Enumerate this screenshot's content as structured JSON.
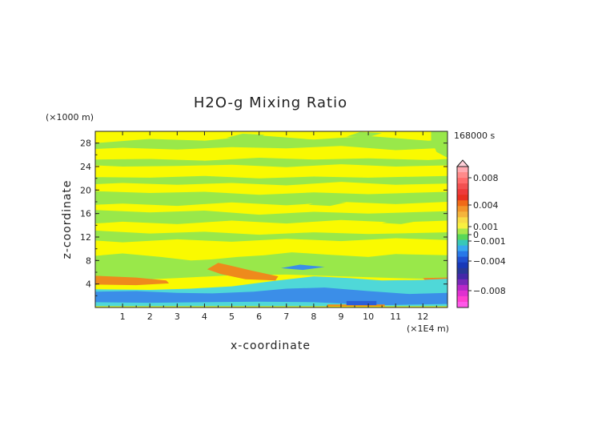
{
  "chart_data": {
    "type": "heatmap",
    "title": "H2O-g Mixing Ratio",
    "xlabel": "x-coordinate",
    "ylabel": "z-coordinate",
    "x_unit": "(×1E4 m)",
    "y_unit": "(×1000 m)",
    "time_label": "168000 s",
    "xlim": [
      0,
      12.9
    ],
    "ylim": [
      0,
      30
    ],
    "x_ticks": [
      "1",
      "2",
      "3",
      "4",
      "5",
      "6",
      "7",
      "8",
      "9",
      "10",
      "11",
      "12"
    ],
    "y_ticks": [
      "4",
      "8",
      "12",
      "16",
      "20",
      "24",
      "28"
    ],
    "background_level": "yellow (≈0 to 0.0005)",
    "regions": [
      {
        "name": "upper-band-28",
        "color": "#99e84a",
        "points": [
          [
            0,
            28
          ],
          [
            2,
            28.7
          ],
          [
            4,
            28.4
          ],
          [
            6,
            29.3
          ],
          [
            8,
            28.6
          ],
          [
            10,
            29.2
          ],
          [
            12.2,
            28.4
          ],
          [
            12.9,
            28.6
          ],
          [
            12.9,
            27.2
          ],
          [
            11,
            26.8
          ],
          [
            9,
            27.5
          ],
          [
            7,
            27.1
          ],
          [
            5,
            27.3
          ],
          [
            3,
            26.9
          ],
          [
            1,
            27.2
          ],
          [
            0,
            27
          ]
        ]
      },
      {
        "name": "upper-band-24",
        "color": "#99e84a",
        "points": [
          [
            0,
            25.2
          ],
          [
            2,
            25.3
          ],
          [
            4,
            25
          ],
          [
            6,
            25.5
          ],
          [
            8,
            25.2
          ],
          [
            10,
            25.4
          ],
          [
            12.2,
            25.1
          ],
          [
            12.9,
            25.3
          ],
          [
            12.9,
            24.2
          ],
          [
            11,
            24
          ],
          [
            9,
            24.4
          ],
          [
            7,
            23.9
          ],
          [
            5,
            24.3
          ],
          [
            3,
            24.1
          ],
          [
            1,
            24
          ],
          [
            0,
            24.2
          ]
        ]
      },
      {
        "name": "upper-band-21",
        "color": "#99e84a",
        "points": [
          [
            0,
            22.2
          ],
          [
            2,
            22.1
          ],
          [
            4,
            22.4
          ],
          [
            6,
            22
          ],
          [
            8,
            22.3
          ],
          [
            10,
            22.1
          ],
          [
            12.9,
            22.4
          ],
          [
            12.9,
            21.1
          ],
          [
            11,
            20.9
          ],
          [
            9,
            21.4
          ],
          [
            7,
            20.8
          ],
          [
            5,
            21.2
          ],
          [
            3,
            20.9
          ],
          [
            1,
            21.2
          ],
          [
            0,
            21
          ]
        ]
      },
      {
        "name": "mid-band-18",
        "color": "#99e84a",
        "points": [
          [
            0,
            19.8
          ],
          [
            2,
            19.5
          ],
          [
            4,
            19.7
          ],
          [
            6,
            19.2
          ],
          [
            8,
            19.6
          ],
          [
            10,
            19.3
          ],
          [
            12.9,
            19.7
          ],
          [
            12.9,
            18
          ],
          [
            11,
            17.6
          ],
          [
            9,
            18
          ],
          [
            7,
            17.4
          ],
          [
            5,
            17.9
          ],
          [
            3,
            17.3
          ],
          [
            1,
            17.7
          ],
          [
            0,
            17.5
          ]
        ]
      },
      {
        "name": "mid-band-16",
        "color": "#99e84a",
        "points": [
          [
            0,
            16.6
          ],
          [
            2,
            16.2
          ],
          [
            4,
            16.5
          ],
          [
            6,
            15.8
          ],
          [
            8,
            16.3
          ],
          [
            10,
            16
          ],
          [
            12.9,
            16.4
          ],
          [
            12.9,
            14.8
          ],
          [
            11,
            14.5
          ],
          [
            9,
            14.9
          ],
          [
            7,
            14.3
          ],
          [
            5,
            14.8
          ],
          [
            3,
            14.2
          ],
          [
            1,
            14.6
          ],
          [
            0,
            14.3
          ]
        ]
      },
      {
        "name": "mid-band-12",
        "color": "#99e84a",
        "points": [
          [
            0,
            13.1
          ],
          [
            2,
            12.6
          ],
          [
            4,
            12.9
          ],
          [
            6,
            12.4
          ],
          [
            8,
            12.8
          ],
          [
            10,
            12.5
          ],
          [
            12.9,
            12.8
          ],
          [
            12.9,
            11.5
          ],
          [
            11,
            11.8
          ],
          [
            9,
            11.3
          ],
          [
            7,
            11.7
          ],
          [
            5,
            11.2
          ],
          [
            3,
            11.6
          ],
          [
            1,
            11.1
          ],
          [
            0,
            11.4
          ]
        ]
      },
      {
        "name": "lower-green",
        "color": "#99e84a",
        "points": [
          [
            0,
            8.8
          ],
          [
            1,
            9.2
          ],
          [
            2.4,
            8.6
          ],
          [
            3.5,
            8
          ],
          [
            4.3,
            8.2
          ],
          [
            5.2,
            8.6
          ],
          [
            6.2,
            8.9
          ],
          [
            7.2,
            9.4
          ],
          [
            8.5,
            9
          ],
          [
            10,
            8.6
          ],
          [
            11,
            9.1
          ],
          [
            12.9,
            8.9
          ],
          [
            12.9,
            4.8
          ],
          [
            11,
            5
          ],
          [
            9,
            5.3
          ],
          [
            7,
            5.6
          ],
          [
            5,
            5.5
          ],
          [
            3,
            5
          ],
          [
            1,
            4.6
          ],
          [
            0,
            4.9
          ]
        ]
      },
      {
        "name": "orange-left-layer",
        "color": "#ee8a1c",
        "points": [
          [
            0,
            5.4
          ],
          [
            1.5,
            5.1
          ],
          [
            2.6,
            4.6
          ],
          [
            2.7,
            4.1
          ],
          [
            1.5,
            3.8
          ],
          [
            0,
            3.9
          ]
        ]
      },
      {
        "name": "orange-tongue",
        "color": "#ee8a1c",
        "points": [
          [
            4.1,
            6.5
          ],
          [
            4.5,
            7.6
          ],
          [
            4.9,
            7.2
          ],
          [
            5.7,
            6.3
          ],
          [
            6.7,
            5.3
          ],
          [
            6.6,
            4.6
          ],
          [
            5.5,
            4.8
          ],
          [
            4.6,
            5.7
          ]
        ]
      },
      {
        "name": "orange-right-patch",
        "color": "#ee8a1c",
        "points": [
          [
            12,
            5
          ],
          [
            12.9,
            5.1
          ],
          [
            12.9,
            4.2
          ],
          [
            12.2,
            4.1
          ]
        ]
      },
      {
        "name": "orange-bottom-left",
        "color": "#ee8a1c",
        "points": [
          [
            2.3,
            0.9
          ],
          [
            3.4,
            1.3
          ],
          [
            4.1,
            0.9
          ],
          [
            3.4,
            0.5
          ],
          [
            2.4,
            0.4
          ]
        ]
      },
      {
        "name": "cyan-low",
        "color": "#4fd8d8",
        "points": [
          [
            0,
            3.1
          ],
          [
            2,
            3
          ],
          [
            3.5,
            3.2
          ],
          [
            5,
            3.6
          ],
          [
            6.5,
            4.5
          ],
          [
            8,
            5.3
          ],
          [
            9.3,
            5
          ],
          [
            10.5,
            4.6
          ],
          [
            12,
            4.7
          ],
          [
            12.9,
            4.9
          ],
          [
            12.9,
            0.2
          ],
          [
            0,
            0.2
          ]
        ]
      },
      {
        "name": "blue-low",
        "color": "#3b8ee8",
        "points": [
          [
            0,
            2.7
          ],
          [
            1.5,
            2.8
          ],
          [
            3,
            2.5
          ],
          [
            4.3,
            2.4
          ],
          [
            5.8,
            2.7
          ],
          [
            7,
            3.2
          ],
          [
            8.4,
            3.4
          ],
          [
            10,
            2.8
          ],
          [
            11.5,
            2.3
          ],
          [
            12.9,
            2.5
          ],
          [
            12.9,
            0.6
          ],
          [
            10.5,
            0.4
          ],
          [
            8,
            0.9
          ],
          [
            6,
            1
          ],
          [
            4,
            0.9
          ],
          [
            2,
            0.8
          ],
          [
            0,
            0.9
          ]
        ]
      },
      {
        "name": "blue-lens",
        "color": "#3b8ee8",
        "points": [
          [
            6.8,
            6.7
          ],
          [
            7.5,
            7.3
          ],
          [
            8.4,
            6.9
          ],
          [
            7.6,
            6.4
          ]
        ]
      },
      {
        "name": "green-top-right",
        "color": "#99e84a",
        "points": [
          [
            12.3,
            30
          ],
          [
            12.9,
            30
          ],
          [
            12.9,
            25.5
          ],
          [
            12.5,
            26.5
          ],
          [
            12.3,
            28.5
          ]
        ]
      },
      {
        "name": "green-patch-a",
        "color": "#99e84a",
        "points": [
          [
            4.8,
            28.9
          ],
          [
            5.4,
            29.6
          ],
          [
            6.2,
            29.4
          ],
          [
            5.8,
            28.6
          ]
        ]
      },
      {
        "name": "green-patch-b",
        "color": "#99e84a",
        "points": [
          [
            9.2,
            29.1
          ],
          [
            9.7,
            29.9
          ],
          [
            10.5,
            29.7
          ],
          [
            10,
            29
          ]
        ]
      },
      {
        "name": "green-patch-c",
        "color": "#99e84a",
        "points": [
          [
            3.2,
            18.8
          ],
          [
            3.8,
            19.4
          ],
          [
            4.5,
            19.2
          ],
          [
            3.9,
            18.6
          ]
        ]
      },
      {
        "name": "green-patch-d",
        "color": "#99e84a",
        "points": [
          [
            7.8,
            17.5
          ],
          [
            8.4,
            18.2
          ],
          [
            9.2,
            17.9
          ],
          [
            8.6,
            17.3
          ]
        ]
      },
      {
        "name": "green-patch-e",
        "color": "#99e84a",
        "points": [
          [
            10.5,
            14.4
          ],
          [
            11.2,
            15
          ],
          [
            11.9,
            14.8
          ],
          [
            11.2,
            14.2
          ]
        ]
      },
      {
        "name": "red-stripe-bottom",
        "color": "#ee8a1c",
        "points": [
          [
            8.5,
            0.2
          ],
          [
            10.6,
            0.2
          ],
          [
            10.6,
            0.5
          ],
          [
            8.5,
            0.5
          ]
        ]
      },
      {
        "name": "blue-dark-strip",
        "color": "#2a5fd8",
        "points": [
          [
            9.2,
            0.4
          ],
          [
            10.3,
            0.4
          ],
          [
            10.3,
            1.1
          ],
          [
            9.2,
            1.1
          ]
        ]
      }
    ],
    "colorbar": {
      "labels": [
        "0.008",
        "0.004",
        "0.001",
        "0",
        "−0.001",
        "−0.004",
        "−0.008"
      ],
      "colors": [
        "#ffa9b0",
        "#ff8a8a",
        "#ff6b6b",
        "#f25050",
        "#ee3a3a",
        "#e83020",
        "#f06a18",
        "#f2942a",
        "#f4b43c",
        "#f8dc46",
        "#f8f040",
        "#a8e84c",
        "#58d858",
        "#38c8b8",
        "#38a8f0",
        "#2878e8",
        "#2050d0",
        "#1838b8",
        "#283898",
        "#4428a8",
        "#7828b8",
        "#b828c8",
        "#e030d0",
        "#ff40d0",
        "#ff58e8"
      ]
    }
  }
}
